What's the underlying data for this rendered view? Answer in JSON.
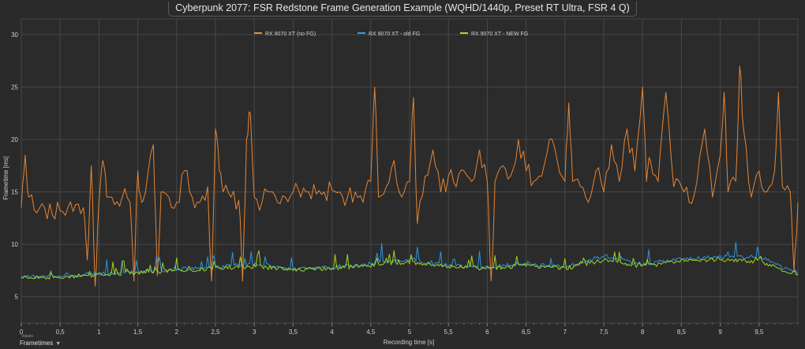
{
  "chart_data": {
    "type": "line",
    "title": "Cyberpunk 2077: FSR Redstone Frame Generation Example (WQHD/1440p, Preset RT Ultra, FSR 4 Q)",
    "xlabel": "Recording time [s]",
    "ylabel": "Frametime [ms]",
    "xlim": [
      0,
      10
    ],
    "ylim": [
      2.5,
      31.5
    ],
    "x_ticks": [
      "0",
      "0,5",
      "1",
      "1,5",
      "2",
      "2,5",
      "3",
      "3,5",
      "4",
      "4,5",
      "5",
      "5,5",
      "6",
      "6,5",
      "7",
      "7,5",
      "8",
      "8,5",
      "9",
      "9,5"
    ],
    "x_tick_values": [
      0,
      0.5,
      1,
      1.5,
      2,
      2.5,
      3,
      3.5,
      4,
      4.5,
      5,
      5.5,
      6,
      6.5,
      7,
      7.5,
      8,
      8.5,
      9,
      9.5
    ],
    "y_ticks": [
      "5",
      "10",
      "15",
      "20",
      "25",
      "30"
    ],
    "y_tick_values": [
      5,
      10,
      15,
      20,
      25,
      30
    ],
    "grid": true,
    "legend_position": "top-center",
    "series": [
      {
        "name": "RX 9070 XT (no FG)",
        "color": "#f08a33",
        "x": [
          0,
          0.05,
          0.1,
          0.2,
          0.3,
          0.4,
          0.5,
          0.6,
          0.7,
          0.8,
          0.85,
          0.9,
          0.95,
          1.0,
          1.05,
          1.1,
          1.2,
          1.3,
          1.4,
          1.45,
          1.5,
          1.55,
          1.6,
          1.7,
          1.75,
          1.8,
          1.9,
          2.0,
          2.1,
          2.2,
          2.3,
          2.4,
          2.45,
          2.5,
          2.55,
          2.6,
          2.7,
          2.8,
          2.85,
          2.9,
          2.95,
          3.0,
          3.1,
          3.2,
          3.3,
          3.4,
          3.5,
          3.6,
          3.7,
          3.8,
          3.9,
          4.0,
          4.1,
          4.2,
          4.3,
          4.4,
          4.5,
          4.55,
          4.6,
          4.7,
          4.8,
          4.9,
          5.0,
          5.05,
          5.1,
          5.2,
          5.3,
          5.4,
          5.5,
          5.6,
          5.7,
          5.8,
          5.9,
          6.0,
          6.05,
          6.1,
          6.2,
          6.3,
          6.4,
          6.5,
          6.6,
          6.7,
          6.8,
          6.9,
          7.0,
          7.05,
          7.1,
          7.2,
          7.3,
          7.4,
          7.5,
          7.6,
          7.7,
          7.8,
          7.9,
          8.0,
          8.05,
          8.1,
          8.2,
          8.3,
          8.4,
          8.5,
          8.6,
          8.7,
          8.8,
          8.9,
          9.0,
          9.05,
          9.1,
          9.2,
          9.25,
          9.3,
          9.4,
          9.5,
          9.6,
          9.7,
          9.75,
          9.8,
          9.9,
          9.95,
          10.0
        ],
        "values": [
          13.5,
          18.5,
          14.5,
          13.0,
          13.5,
          12.8,
          13.2,
          13.5,
          13.8,
          13.5,
          8.5,
          17.5,
          6.0,
          14.0,
          18.0,
          14.5,
          13.8,
          14.5,
          14.0,
          6.5,
          17.0,
          14.0,
          15.0,
          19.5,
          7.0,
          15.0,
          14.5,
          14.0,
          17.0,
          14.5,
          14.0,
          15.5,
          6.5,
          21.0,
          17.0,
          15.0,
          14.5,
          14.2,
          6.5,
          20.0,
          22.5,
          14.5,
          14.0,
          15.0,
          14.0,
          14.5,
          15.0,
          14.5,
          15.0,
          14.8,
          15.0,
          15.2,
          15.0,
          14.5,
          15.0,
          14.0,
          16.0,
          25.0,
          14.5,
          15.5,
          18.0,
          14.5,
          16.0,
          24.0,
          12.0,
          16.5,
          19.0,
          15.0,
          16.5,
          15.5,
          17.0,
          16.0,
          19.0,
          16.0,
          6.5,
          16.0,
          17.5,
          16.5,
          20.0,
          17.0,
          16.0,
          16.5,
          20.0,
          18.0,
          16.0,
          23.5,
          16.0,
          15.5,
          14.0,
          17.0,
          15.0,
          19.5,
          16.0,
          21.0,
          17.0,
          25.0,
          16.0,
          18.0,
          16.0,
          24.5,
          15.5,
          15.5,
          14.0,
          16.0,
          21.0,
          14.5,
          18.5,
          24.5,
          15.0,
          16.0,
          27.0,
          21.0,
          14.5,
          17.0,
          15.0,
          17.0,
          24.5,
          15.5,
          15.0,
          7.5,
          14.0
        ]
      },
      {
        "name": "RX 9070 XT - old FG",
        "color": "#2f9be8",
        "x": [
          0,
          0.5,
          1.0,
          1.5,
          2.0,
          2.5,
          3.0,
          3.5,
          4.0,
          4.5,
          5.0,
          5.5,
          6.0,
          6.5,
          7.0,
          7.5,
          8.0,
          8.5,
          9.0,
          9.5,
          9.6,
          9.8,
          10.0
        ],
        "values": [
          6.9,
          7.0,
          7.2,
          7.4,
          7.6,
          7.8,
          8.1,
          7.7,
          7.8,
          8.2,
          8.6,
          8.0,
          7.8,
          8.2,
          7.8,
          8.9,
          8.1,
          8.6,
          8.8,
          8.8,
          8.6,
          7.8,
          7.3
        ]
      },
      {
        "name": "RX 9070 XT - NEW FG",
        "color": "#a6dc1d",
        "x": [
          0,
          0.5,
          1.0,
          1.5,
          2.0,
          2.5,
          3.0,
          3.5,
          4.0,
          4.5,
          5.0,
          5.5,
          6.0,
          6.5,
          7.0,
          7.5,
          8.0,
          8.5,
          9.0,
          9.5,
          9.6,
          9.8,
          10.0
        ],
        "values": [
          6.8,
          6.9,
          7.1,
          7.3,
          7.5,
          7.7,
          7.9,
          7.6,
          7.7,
          8.0,
          8.3,
          7.9,
          7.7,
          8.0,
          7.7,
          8.5,
          7.9,
          8.4,
          8.6,
          8.3,
          8.1,
          7.5,
          7.2
        ]
      }
    ]
  },
  "footer": {
    "menu_label": "Frametimes",
    "sub_label": "Values",
    "arrow_icon": "chevron-down-icon"
  }
}
